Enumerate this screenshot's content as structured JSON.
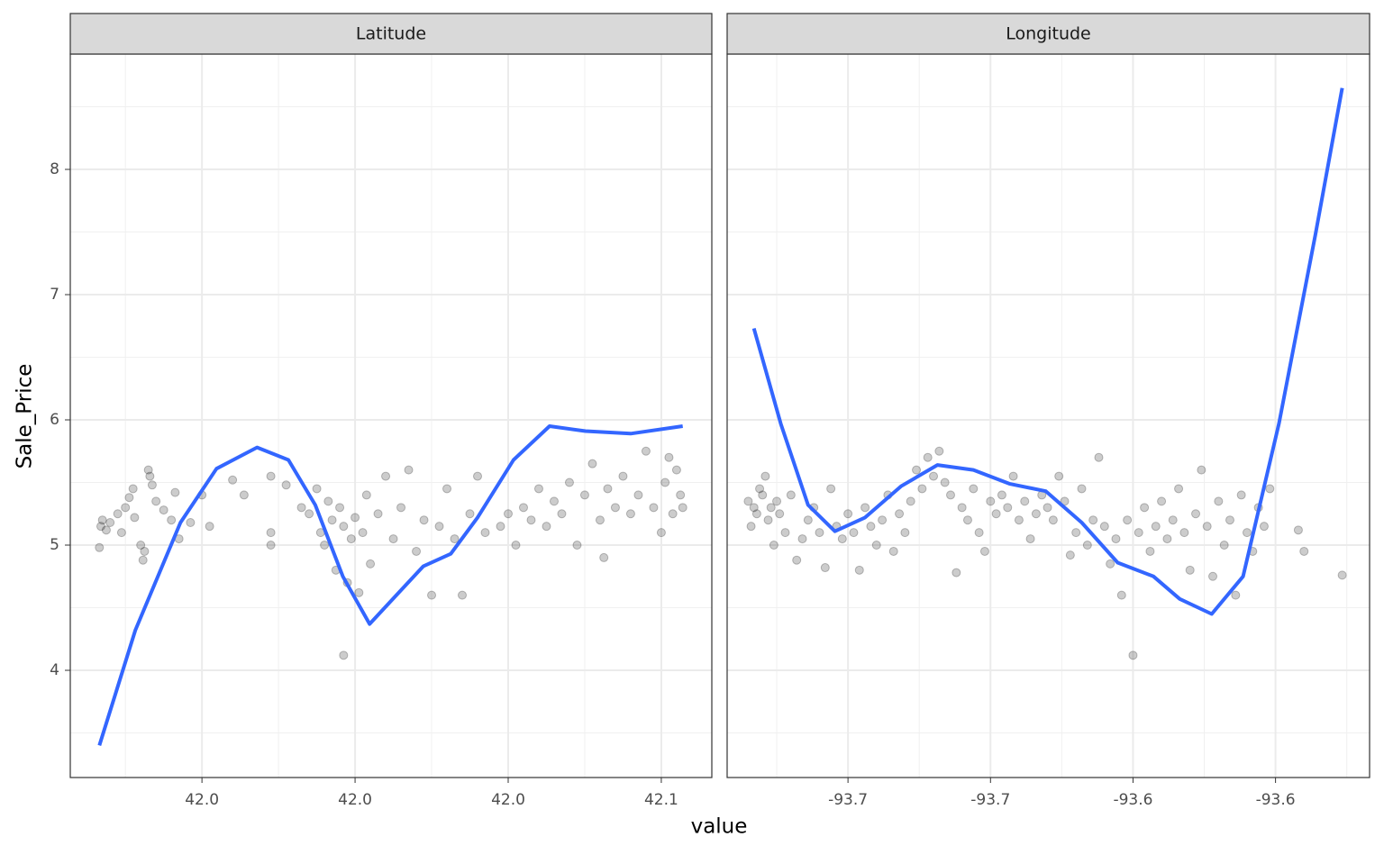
{
  "chart_data": {
    "type": "scatter",
    "xlabel": "value",
    "ylabel": "Sale_Price",
    "ylim": [
      3.144,
      8.921
    ],
    "yticks": [
      4,
      5,
      6,
      7,
      8
    ],
    "grid": true,
    "point_color": "#000000",
    "line_color": "#3366ff",
    "facets": [
      {
        "title": "Latitude",
        "xlim": [
          41.9828,
          42.0666
        ],
        "xticks": [
          {
            "value": 42.0,
            "label": "42.0"
          },
          {
            "value": 42.02,
            "label": "42.0"
          },
          {
            "value": 42.04,
            "label": "42.0"
          },
          {
            "value": 42.06,
            "label": "42.1"
          }
        ],
        "points": {
          "x": [
            41.9866,
            41.9868,
            41.987,
            41.9875,
            41.988,
            41.989,
            41.9895,
            41.99,
            41.9905,
            41.991,
            41.9912,
            41.992,
            41.9923,
            41.9925,
            41.993,
            41.9932,
            41.9935,
            41.994,
            41.995,
            41.996,
            41.9965,
            41.997,
            41.9985,
            42.0,
            42.001,
            42.004,
            42.0055,
            42.009,
            42.009,
            42.009,
            42.011,
            42.013,
            42.014,
            42.015,
            42.0155,
            42.016,
            42.0165,
            42.017,
            42.0175,
            42.018,
            42.0185,
            42.019,
            42.0195,
            42.02,
            42.0205,
            42.021,
            42.0215,
            42.022,
            42.0185,
            42.023,
            42.024,
            42.025,
            42.026,
            42.027,
            42.028,
            42.029,
            42.03,
            42.031,
            42.032,
            42.033,
            42.034,
            42.035,
            42.036,
            42.037,
            42.039,
            42.04,
            42.041,
            42.042,
            42.043,
            42.044,
            42.045,
            42.046,
            42.047,
            42.048,
            42.049,
            42.05,
            42.051,
            42.052,
            42.0525,
            42.053,
            42.054,
            42.055,
            42.056,
            42.057,
            42.058,
            42.059,
            42.06,
            42.0605,
            42.061,
            42.0615,
            42.062,
            42.0625,
            42.0628
          ],
          "y": [
            4.98,
            5.15,
            5.2,
            5.12,
            5.18,
            5.25,
            5.1,
            5.3,
            5.38,
            5.45,
            5.22,
            5.0,
            4.88,
            4.95,
            5.6,
            5.55,
            5.48,
            5.35,
            5.28,
            5.2,
            5.42,
            5.05,
            5.18,
            5.4,
            5.15,
            5.52,
            5.4,
            5.55,
            5.0,
            5.1,
            5.48,
            5.3,
            5.25,
            5.45,
            5.1,
            5.0,
            5.35,
            5.2,
            4.8,
            5.3,
            5.15,
            4.7,
            5.05,
            5.22,
            4.62,
            5.1,
            5.4,
            4.85,
            4.12,
            5.25,
            5.55,
            5.05,
            5.3,
            5.6,
            4.95,
            5.2,
            4.6,
            5.15,
            5.45,
            5.05,
            4.6,
            5.25,
            5.55,
            5.1,
            5.15,
            5.25,
            5.0,
            5.3,
            5.2,
            5.45,
            5.15,
            5.35,
            5.25,
            5.5,
            5.0,
            5.4,
            5.65,
            5.2,
            4.9,
            5.45,
            5.3,
            5.55,
            5.25,
            5.4,
            5.75,
            5.3,
            5.1,
            5.5,
            5.7,
            5.25,
            5.6,
            5.4,
            5.3
          ]
        },
        "smooth": {
          "x": [
            41.9866,
            41.9913,
            41.9972,
            42.0019,
            42.0072,
            42.0113,
            42.0148,
            42.0184,
            42.0219,
            42.0254,
            42.0289,
            42.0325,
            42.036,
            42.0407,
            42.0454,
            42.0501,
            42.056,
            42.0628
          ],
          "y": [
            3.4,
            4.32,
            5.18,
            5.61,
            5.78,
            5.68,
            5.32,
            4.75,
            4.37,
            4.6,
            4.83,
            4.93,
            5.22,
            5.68,
            5.95,
            5.91,
            5.89,
            5.95
          ]
        }
      },
      {
        "title": "Longitude",
        "xlim": [
          -93.6962,
          -93.5835
        ],
        "xticks": [
          {
            "value": -93.675,
            "label": "-93.7"
          },
          {
            "value": -93.65,
            "label": "-93.7"
          },
          {
            "value": -93.625,
            "label": "-93.6"
          },
          {
            "value": -93.6,
            "label": "-93.6"
          }
        ],
        "points": {
          "x": [
            -93.6925,
            -93.692,
            -93.6915,
            -93.691,
            -93.6905,
            -93.69,
            -93.6895,
            -93.689,
            -93.6885,
            -93.688,
            -93.6875,
            -93.687,
            -93.686,
            -93.685,
            -93.684,
            -93.683,
            -93.682,
            -93.681,
            -93.68,
            -93.679,
            -93.678,
            -93.677,
            -93.676,
            -93.675,
            -93.674,
            -93.673,
            -93.672,
            -93.671,
            -93.67,
            -93.669,
            -93.668,
            -93.667,
            -93.666,
            -93.665,
            -93.664,
            -93.663,
            -93.662,
            -93.661,
            -93.66,
            -93.659,
            -93.658,
            -93.657,
            -93.656,
            -93.655,
            -93.654,
            -93.653,
            -93.652,
            -93.651,
            -93.65,
            -93.649,
            -93.648,
            -93.647,
            -93.646,
            -93.645,
            -93.644,
            -93.643,
            -93.642,
            -93.641,
            -93.64,
            -93.639,
            -93.638,
            -93.637,
            -93.636,
            -93.635,
            -93.634,
            -93.633,
            -93.632,
            -93.631,
            -93.63,
            -93.629,
            -93.628,
            -93.627,
            -93.626,
            -93.625,
            -93.624,
            -93.623,
            -93.622,
            -93.621,
            -93.62,
            -93.619,
            -93.618,
            -93.617,
            -93.616,
            -93.615,
            -93.614,
            -93.613,
            -93.612,
            -93.611,
            -93.61,
            -93.609,
            -93.608,
            -93.607,
            -93.606,
            -93.605,
            -93.604,
            -93.603,
            -93.602,
            -93.601,
            -93.596,
            -93.595,
            -93.5883
          ],
          "y": [
            5.35,
            5.15,
            5.3,
            5.25,
            5.45,
            5.4,
            5.55,
            5.2,
            5.3,
            5.0,
            5.35,
            5.25,
            5.1,
            5.4,
            4.88,
            5.05,
            5.2,
            5.3,
            5.1,
            4.82,
            5.45,
            5.15,
            5.05,
            5.25,
            5.1,
            4.8,
            5.3,
            5.15,
            5.0,
            5.2,
            5.4,
            4.95,
            5.25,
            5.1,
            5.35,
            5.6,
            5.45,
            5.7,
            5.55,
            5.75,
            5.5,
            5.4,
            4.78,
            5.3,
            5.2,
            5.45,
            5.1,
            4.95,
            5.35,
            5.25,
            5.4,
            5.3,
            5.55,
            5.2,
            5.35,
            5.05,
            5.25,
            5.4,
            5.3,
            5.2,
            5.55,
            5.35,
            4.92,
            5.1,
            5.45,
            5.0,
            5.2,
            5.7,
            5.15,
            4.85,
            5.05,
            4.6,
            5.2,
            4.12,
            5.1,
            5.3,
            4.95,
            5.15,
            5.35,
            5.05,
            5.2,
            5.45,
            5.1,
            4.8,
            5.25,
            5.6,
            5.15,
            4.75,
            5.35,
            5.0,
            5.2,
            4.6,
            5.4,
            5.1,
            4.95,
            5.3,
            5.15,
            5.45,
            5.12,
            4.95,
            4.76
          ]
        },
        "smooth": {
          "x": [
            -93.6915,
            -93.6868,
            -93.682,
            -93.6773,
            -93.672,
            -93.6657,
            -93.6593,
            -93.653,
            -93.6467,
            -93.6403,
            -93.634,
            -93.6277,
            -93.6214,
            -93.6168,
            -93.6112,
            -93.6057,
            -93.5994,
            -93.593,
            -93.5883
          ],
          "y": [
            6.73,
            5.97,
            5.32,
            5.11,
            5.22,
            5.47,
            5.64,
            5.6,
            5.49,
            5.43,
            5.18,
            4.86,
            4.75,
            4.57,
            4.45,
            4.75,
            5.97,
            7.48,
            8.65
          ]
        }
      }
    ]
  }
}
